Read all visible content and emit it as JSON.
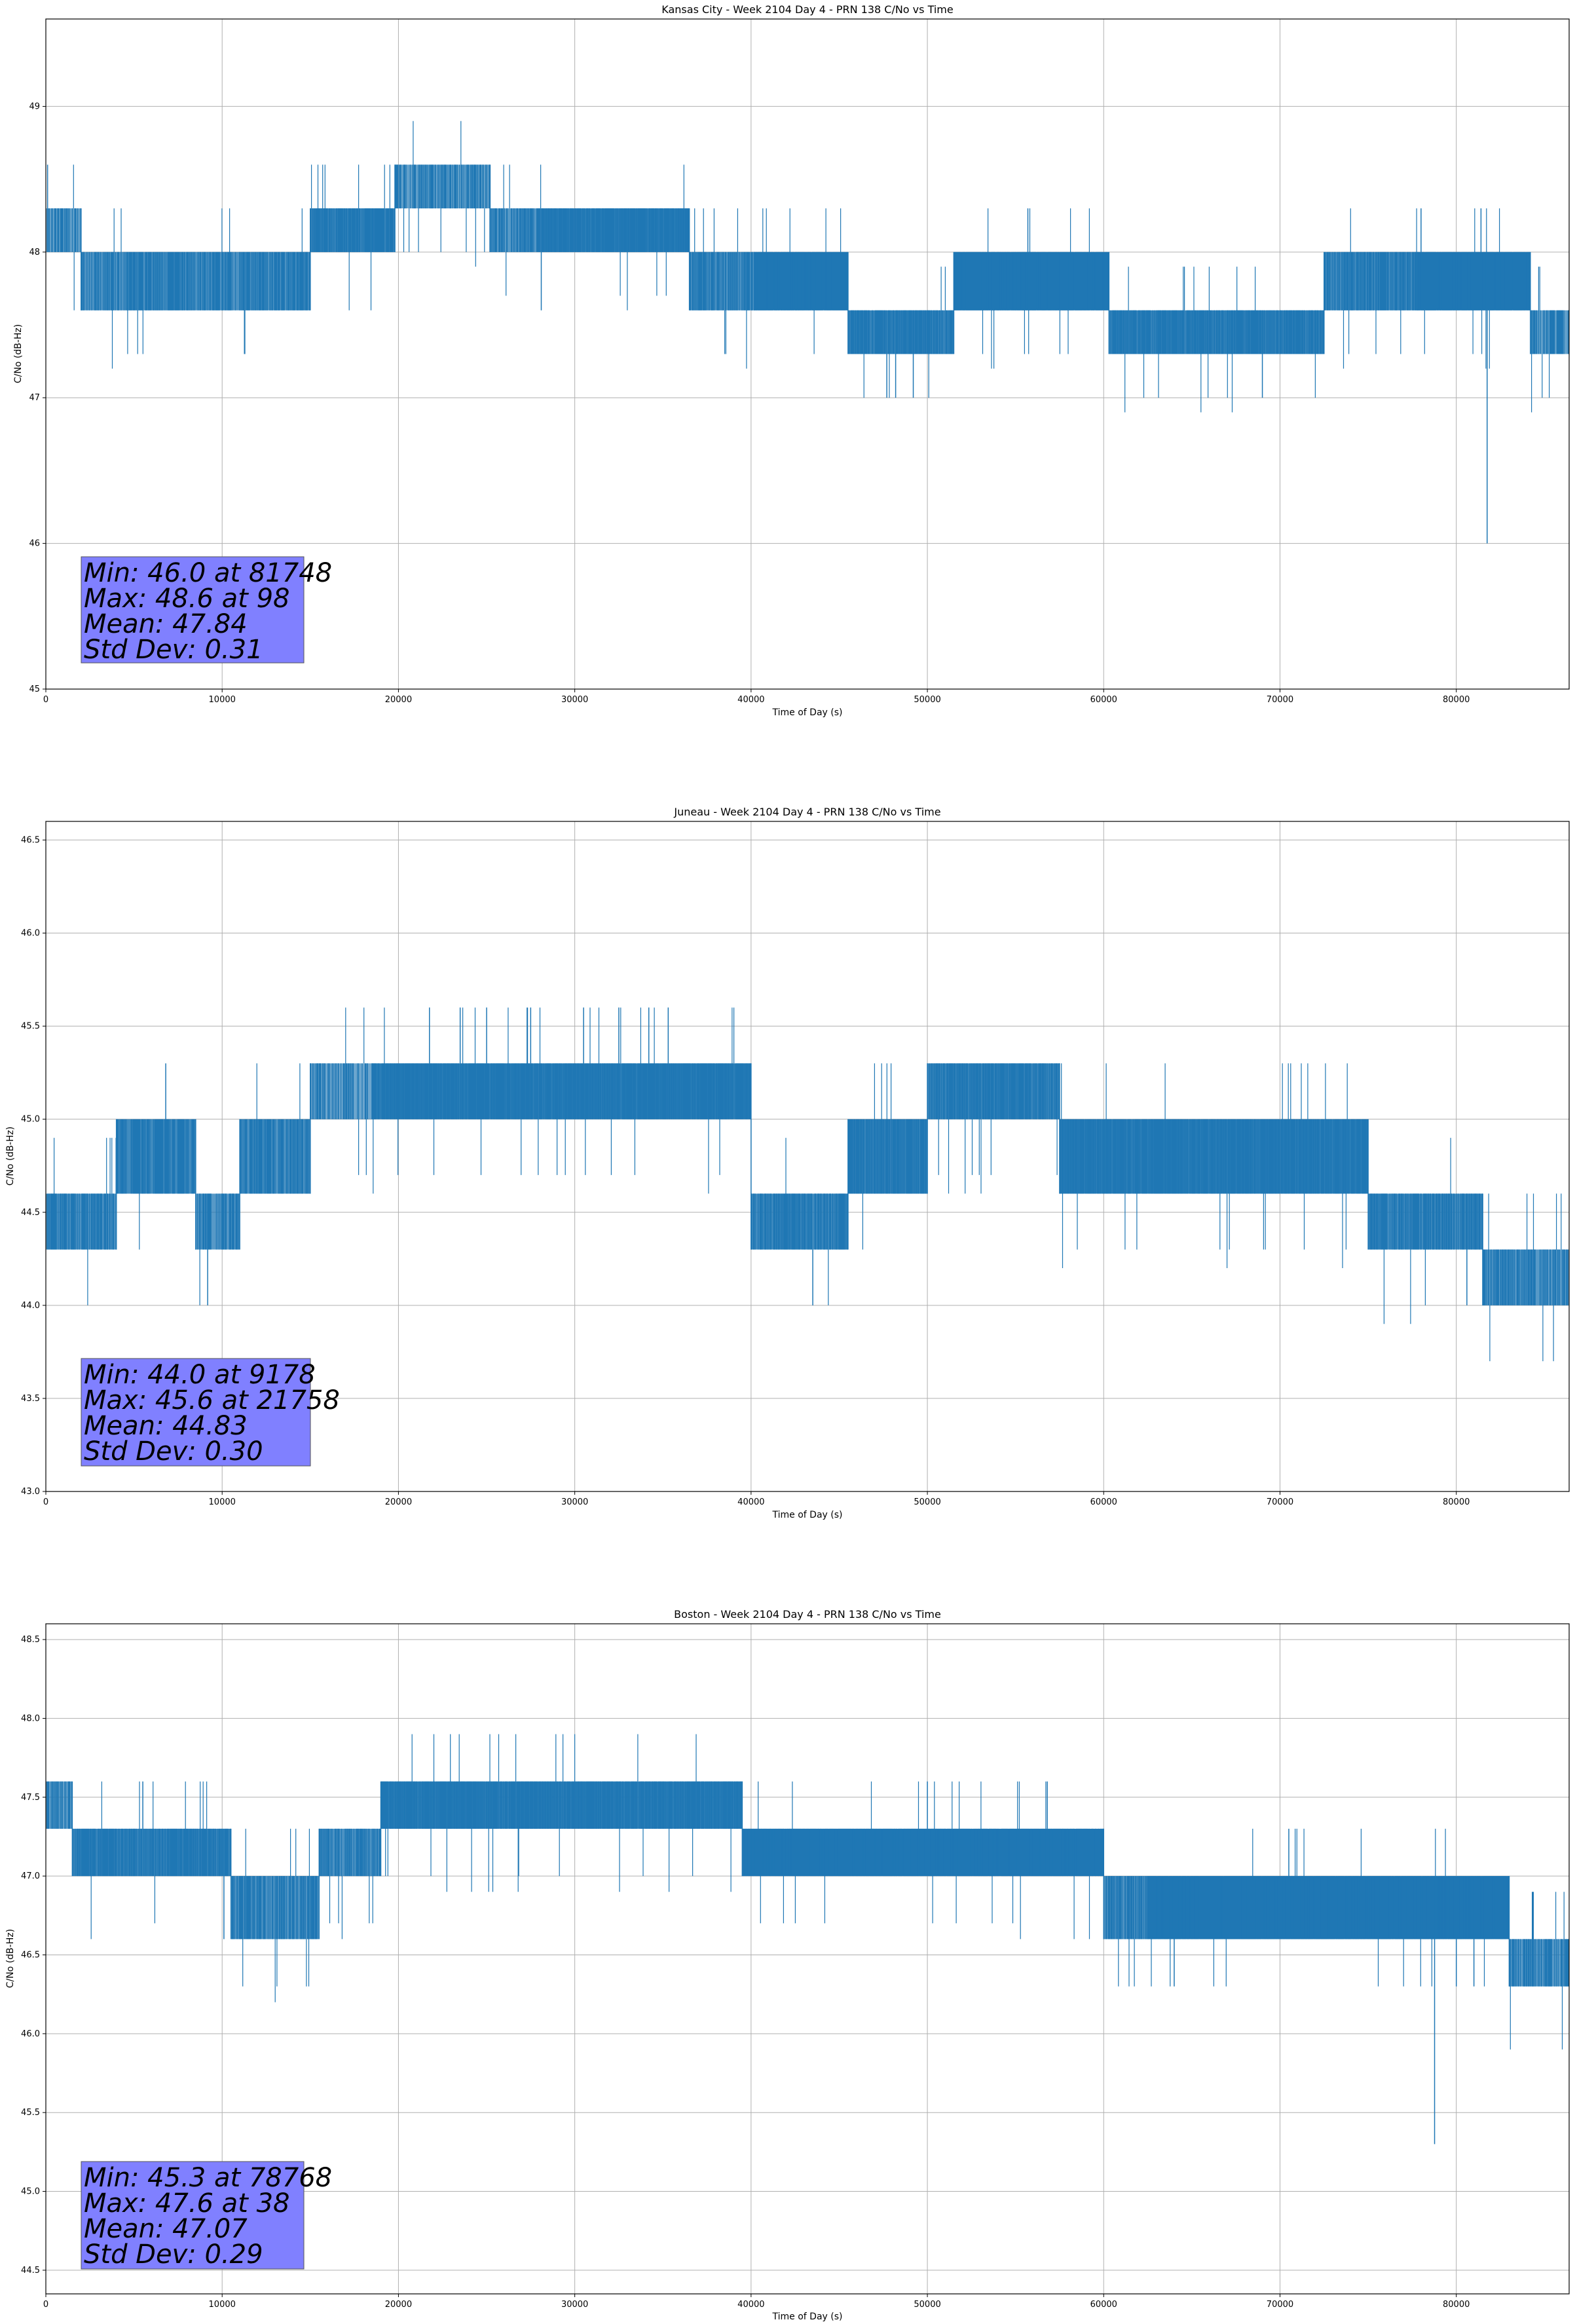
{
  "chart_data": [
    {
      "type": "line",
      "title": "Kansas City - Week 2104 Day 4 - PRN 138 C/No vs Time",
      "xlabel": "Time of Day (s)",
      "ylabel": "C/No (dB-Hz)",
      "xlim": [
        0,
        86400
      ],
      "ylim": [
        45,
        49.6
      ],
      "xticks": [
        0,
        10000,
        20000,
        30000,
        40000,
        50000,
        60000,
        70000,
        80000
      ],
      "xtick_labels": [
        "0",
        "10000",
        "20000",
        "30000",
        "40000",
        "50000",
        "60000",
        "70000",
        "80000"
      ],
      "yticks": [
        45,
        46,
        47,
        48,
        49
      ],
      "ytick_labels": [
        "45",
        "46",
        "47",
        "48",
        "49"
      ],
      "grid": true,
      "color": "#1f77b4",
      "series": [
        {
          "segments": [
            {
              "x0": 0,
              "x1": 2000,
              "levels": [
                48.0,
                48.3
              ],
              "mix": 0.5
            },
            {
              "x0": 2000,
              "x1": 15000,
              "levels": [
                47.6,
                48.0
              ],
              "mix": 0.6
            },
            {
              "x0": 15000,
              "x1": 19800,
              "levels": [
                48.0,
                48.3
              ],
              "mix": 0.7
            },
            {
              "x0": 19800,
              "x1": 25200,
              "levels": [
                48.3,
                48.6
              ],
              "mix": 0.5
            },
            {
              "x0": 25200,
              "x1": 28000,
              "levels": [
                48.0,
                48.3
              ],
              "mix": 0.55
            },
            {
              "x0": 28000,
              "x1": 36500,
              "levels": [
                48.0,
                48.3
              ],
              "mix": 0.75
            },
            {
              "x0": 36500,
              "x1": 40200,
              "levels": [
                47.6,
                48.0
              ],
              "mix": 0.6
            },
            {
              "x0": 40200,
              "x1": 45500,
              "levels": [
                47.6,
                48.0
              ],
              "mix": 0.8
            },
            {
              "x0": 45500,
              "x1": 51500,
              "levels": [
                47.3,
                47.6
              ],
              "mix": 0.7
            },
            {
              "x0": 51500,
              "x1": 60300,
              "levels": [
                47.6,
                48.0
              ],
              "mix": 0.8
            },
            {
              "x0": 60300,
              "x1": 72500,
              "levels": [
                47.3,
                47.6
              ],
              "mix": 0.7
            },
            {
              "x0": 72500,
              "x1": 77800,
              "levels": [
                47.6,
                48.0
              ],
              "mix": 0.65
            },
            {
              "x0": 77800,
              "x1": 84200,
              "levels": [
                47.6,
                48.0
              ],
              "mix": 0.85
            },
            {
              "x0": 84200,
              "x1": 86400,
              "levels": [
                47.3,
                47.6
              ],
              "mix": 0.5
            }
          ],
          "spikes": [
            {
              "x": 98,
              "y": 48.6
            },
            {
              "x": 20100,
              "y": 48.6
            },
            {
              "x": 28100,
              "y": 47.6
            },
            {
              "x": 47700,
              "y": 47.0
            },
            {
              "x": 48200,
              "y": 47.0
            },
            {
              "x": 49200,
              "y": 47.0
            },
            {
              "x": 55700,
              "y": 48.3
            },
            {
              "x": 69000,
              "y": 47.0
            },
            {
              "x": 78000,
              "y": 48.3
            },
            {
              "x": 81400,
              "y": 48.3
            },
            {
              "x": 81748,
              "y": 46.0
            }
          ]
        }
      ],
      "stats": [
        "Min: 46.0 at 81748",
        "Max: 48.6 at 98",
        "Mean: 47.84",
        "Std Dev: 0.31"
      ]
    },
    {
      "type": "line",
      "title": "Juneau - Week 2104 Day 4 - PRN 138 C/No vs Time",
      "xlabel": "Time of Day (s)",
      "ylabel": "C/No (dB-Hz)",
      "xlim": [
        0,
        86400
      ],
      "ylim": [
        43.0,
        46.6
      ],
      "xticks": [
        0,
        10000,
        20000,
        30000,
        40000,
        50000,
        60000,
        70000,
        80000
      ],
      "xtick_labels": [
        "0",
        "10000",
        "20000",
        "30000",
        "40000",
        "50000",
        "60000",
        "70000",
        "80000"
      ],
      "yticks": [
        43.0,
        43.5,
        44.0,
        44.5,
        45.0,
        45.5,
        46.0,
        46.5
      ],
      "ytick_labels": [
        "43.0",
        "43.5",
        "44.0",
        "44.5",
        "45.0",
        "45.5",
        "46.0",
        "46.5"
      ],
      "grid": true,
      "color": "#1f77b4",
      "series": [
        {
          "segments": [
            {
              "x0": 0,
              "x1": 4000,
              "levels": [
                44.3,
                44.6
              ],
              "mix": 0.6
            },
            {
              "x0": 4000,
              "x1": 8500,
              "levels": [
                44.6,
                45.0
              ],
              "mix": 0.65
            },
            {
              "x0": 8500,
              "x1": 11000,
              "levels": [
                44.3,
                44.6
              ],
              "mix": 0.55
            },
            {
              "x0": 11000,
              "x1": 15000,
              "levels": [
                44.6,
                45.0
              ],
              "mix": 0.6
            },
            {
              "x0": 15000,
              "x1": 18500,
              "levels": [
                45.0,
                45.3
              ],
              "mix": 0.45
            },
            {
              "x0": 18500,
              "x1": 40000,
              "levels": [
                45.0,
                45.3
              ],
              "mix": 0.75
            },
            {
              "x0": 40000,
              "x1": 45500,
              "levels": [
                44.3,
                44.6
              ],
              "mix": 0.65
            },
            {
              "x0": 45500,
              "x1": 50000,
              "levels": [
                44.6,
                45.0
              ],
              "mix": 0.7
            },
            {
              "x0": 50000,
              "x1": 57500,
              "levels": [
                45.0,
                45.3
              ],
              "mix": 0.7
            },
            {
              "x0": 57500,
              "x1": 75000,
              "levels": [
                44.6,
                45.0
              ],
              "mix": 0.75
            },
            {
              "x0": 75000,
              "x1": 81500,
              "levels": [
                44.3,
                44.6
              ],
              "mix": 0.65
            },
            {
              "x0": 81500,
              "x1": 86400,
              "levels": [
                44.0,
                44.3
              ],
              "mix": 0.55
            }
          ],
          "spikes": [
            {
              "x": 6800,
              "y": 45.3
            },
            {
              "x": 9178,
              "y": 44.0
            },
            {
              "x": 21758,
              "y": 45.6
            },
            {
              "x": 23500,
              "y": 45.6
            },
            {
              "x": 25000,
              "y": 45.6
            },
            {
              "x": 27500,
              "y": 45.6
            },
            {
              "x": 30500,
              "y": 45.6
            },
            {
              "x": 32500,
              "y": 45.6
            },
            {
              "x": 34200,
              "y": 45.6
            },
            {
              "x": 35300,
              "y": 45.6
            },
            {
              "x": 43500,
              "y": 44.0
            },
            {
              "x": 80600,
              "y": 44.0
            },
            {
              "x": 81500,
              "y": 44.0
            }
          ]
        }
      ],
      "stats": [
        "Min: 44.0 at 9178",
        "Max: 45.6 at 21758",
        "Mean: 44.83",
        "Std Dev: 0.30"
      ]
    },
    {
      "type": "line",
      "title": "Boston - Week 2104 Day 4 - PRN 138 C/No vs Time",
      "xlabel": "Time of Day (s)",
      "ylabel": "C/No (dB-Hz)",
      "xlim": [
        0,
        86400
      ],
      "ylim": [
        44.35,
        48.6
      ],
      "xticks": [
        0,
        10000,
        20000,
        30000,
        40000,
        50000,
        60000,
        70000,
        80000
      ],
      "xtick_labels": [
        "0",
        "10000",
        "20000",
        "30000",
        "40000",
        "50000",
        "60000",
        "70000",
        "80000"
      ],
      "yticks": [
        44.5,
        45.0,
        45.5,
        46.0,
        46.5,
        47.0,
        47.5,
        48.0,
        48.5
      ],
      "ytick_labels": [
        "44.5",
        "45.0",
        "45.5",
        "46.0",
        "46.5",
        "47.0",
        "47.5",
        "48.0",
        "48.5"
      ],
      "grid": true,
      "color": "#1f77b4",
      "series": [
        {
          "segments": [
            {
              "x0": 0,
              "x1": 1500,
              "levels": [
                47.3,
                47.6
              ],
              "mix": 0.5
            },
            {
              "x0": 1500,
              "x1": 10500,
              "levels": [
                47.0,
                47.3
              ],
              "mix": 0.7
            },
            {
              "x0": 10500,
              "x1": 15500,
              "levels": [
                46.6,
                47.0
              ],
              "mix": 0.6
            },
            {
              "x0": 15500,
              "x1": 19000,
              "levels": [
                47.0,
                47.3
              ],
              "mix": 0.6
            },
            {
              "x0": 19000,
              "x1": 39500,
              "levels": [
                47.3,
                47.6
              ],
              "mix": 0.75
            },
            {
              "x0": 39500,
              "x1": 60000,
              "levels": [
                47.0,
                47.3
              ],
              "mix": 0.8
            },
            {
              "x0": 60000,
              "x1": 62500,
              "levels": [
                46.6,
                47.0
              ],
              "mix": 0.6
            },
            {
              "x0": 62500,
              "x1": 83000,
              "levels": [
                46.6,
                47.0
              ],
              "mix": 0.8
            },
            {
              "x0": 83000,
              "x1": 86400,
              "levels": [
                46.3,
                46.6
              ],
              "mix": 0.55
            }
          ],
          "spikes": [
            {
              "x": 38,
              "y": 47.6
            },
            {
              "x": 900,
              "y": 47.6
            },
            {
              "x": 5500,
              "y": 47.6
            },
            {
              "x": 10100,
              "y": 46.6
            },
            {
              "x": 50000,
              "y": 47.6
            },
            {
              "x": 56800,
              "y": 47.6
            },
            {
              "x": 64000,
              "y": 46.3
            },
            {
              "x": 70500,
              "y": 47.3
            },
            {
              "x": 78768,
              "y": 45.3
            },
            {
              "x": 80000,
              "y": 46.3
            },
            {
              "x": 81000,
              "y": 46.3
            }
          ]
        }
      ],
      "stats": [
        "Min: 45.3 at 78768",
        "Max: 47.6 at 38",
        "Mean: 47.07",
        "Std Dev: 0.29"
      ]
    }
  ]
}
